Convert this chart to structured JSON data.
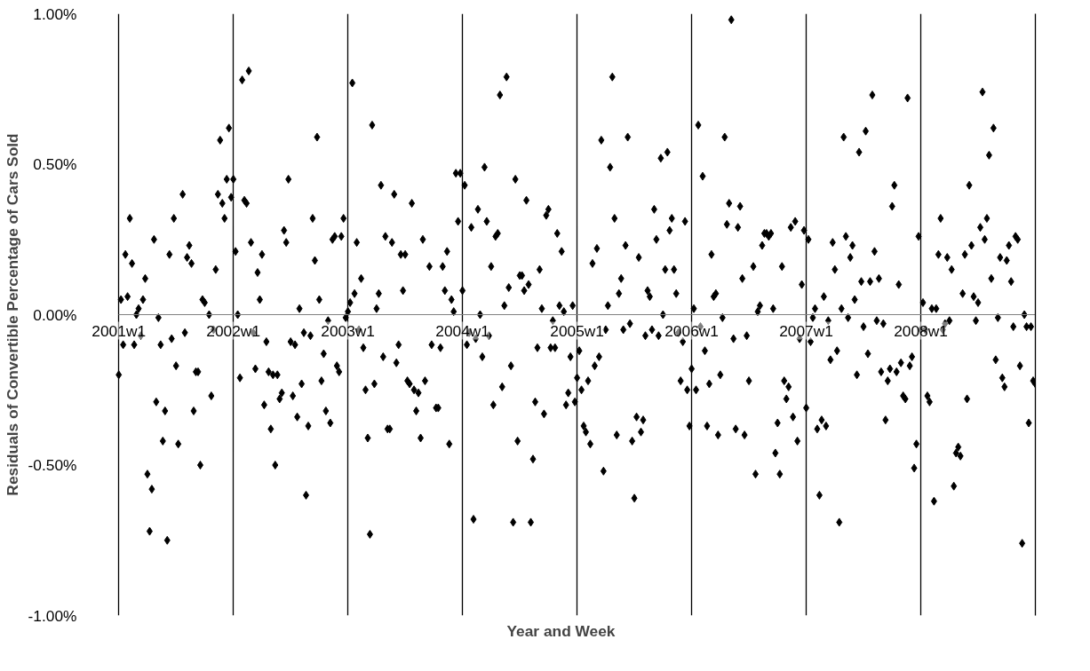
{
  "chart_data": {
    "type": "scatter",
    "xlabel": "Year and Week",
    "ylabel": "Residuals of Convertible Percentage of Cars Sold",
    "marker": "diamond",
    "grid": "x",
    "ylim": [
      -1,
      1
    ],
    "yticks": [
      {
        "value": -1,
        "label": "-1.00%"
      },
      {
        "value": -0.5,
        "label": "-0.50%"
      },
      {
        "value": 0,
        "label": "0.00%"
      },
      {
        "value": 0.5,
        "label": "0.50%"
      },
      {
        "value": 1,
        "label": "1.00%"
      }
    ],
    "categories": [
      "2001w1",
      null,
      null,
      null,
      null,
      null,
      null,
      null,
      null,
      null,
      null,
      null,
      null,
      null,
      null,
      null,
      null,
      null,
      null,
      null,
      null,
      null,
      null,
      null,
      null,
      null,
      null,
      null,
      null,
      null,
      null,
      null,
      null,
      null,
      null,
      null,
      null,
      null,
      null,
      null,
      null,
      null,
      null,
      null,
      null,
      null,
      null,
      null,
      null,
      null,
      null,
      null,
      "2002w1",
      null,
      null,
      null,
      null,
      null,
      null,
      null,
      null,
      null,
      null,
      null,
      null,
      null,
      null,
      null,
      null,
      null,
      null,
      null,
      null,
      null,
      null,
      null,
      null,
      null,
      null,
      null,
      null,
      null,
      null,
      null,
      null,
      null,
      null,
      null,
      null,
      null,
      null,
      null,
      null,
      null,
      null,
      null,
      null,
      null,
      null,
      null,
      null,
      null,
      null,
      null,
      "2003w1",
      null,
      null,
      null,
      null,
      null,
      null,
      null,
      null,
      null,
      null,
      null,
      null,
      null,
      null,
      null,
      null,
      null,
      null,
      null,
      null,
      null,
      null,
      null,
      null,
      null,
      null,
      null,
      null,
      null,
      null,
      null,
      null,
      null,
      null,
      null,
      null,
      null,
      null,
      null,
      null,
      null,
      null,
      null,
      null,
      null,
      null,
      null,
      null,
      null,
      null,
      null,
      "2004w1",
      null,
      null,
      null,
      null,
      null,
      null,
      null,
      null,
      null,
      null,
      null,
      null,
      null,
      null,
      null,
      null,
      null,
      null,
      null,
      null,
      null,
      null,
      null,
      null,
      null,
      null,
      null,
      null,
      null,
      null,
      null,
      null,
      null,
      null,
      null,
      null,
      null,
      null,
      null,
      null,
      null,
      null,
      null,
      null,
      null,
      null,
      null,
      null,
      null,
      null,
      null,
      "2005w1",
      null,
      null,
      null,
      null,
      null,
      null,
      null,
      null,
      null,
      null,
      null,
      null,
      null,
      null,
      null,
      null,
      null,
      null,
      null,
      null,
      null,
      null,
      null,
      null,
      null,
      null,
      null,
      null,
      null,
      null,
      null,
      null,
      null,
      null,
      null,
      null,
      null,
      null,
      null,
      null,
      null,
      null,
      null,
      null,
      null,
      null,
      null,
      null,
      null,
      null,
      null,
      "2006w1",
      null,
      null,
      null,
      null,
      null,
      null,
      null,
      null,
      null,
      null,
      null,
      null,
      null,
      null,
      null,
      null,
      null,
      null,
      null,
      null,
      null,
      null,
      null,
      null,
      null,
      null,
      null,
      null,
      null,
      null,
      null,
      null,
      null,
      null,
      null,
      null,
      null,
      null,
      null,
      null,
      null,
      null,
      null,
      null,
      null,
      null,
      null,
      null,
      null,
      null,
      null,
      "2007w1",
      null,
      null,
      null,
      null,
      null,
      null,
      null,
      null,
      null,
      null,
      null,
      null,
      null,
      null,
      null,
      null,
      null,
      null,
      null,
      null,
      null,
      null,
      null,
      null,
      null,
      null,
      null,
      null,
      null,
      null,
      null,
      null,
      null,
      null,
      null,
      null,
      null,
      null,
      null,
      null,
      null,
      null,
      null,
      null,
      null,
      null,
      null,
      null,
      null,
      null,
      null,
      "2008w1",
      null,
      null,
      null,
      null,
      null,
      null,
      null,
      null,
      null,
      null,
      null,
      null,
      null,
      null,
      null,
      null,
      null,
      null,
      null,
      null,
      null,
      null,
      null,
      null,
      null,
      null,
      null,
      null,
      null,
      null,
      null,
      null,
      null,
      null,
      null,
      null,
      null,
      null,
      null,
      null,
      null,
      null,
      null,
      null,
      null,
      null,
      null,
      null,
      null,
      null,
      null,
      null
    ],
    "series": [
      {
        "color": "#000000",
        "values": [
          -0.2,
          0.05,
          -0.1,
          0.2,
          0.06,
          0.32,
          0.17,
          -0.1,
          0.0,
          0.02,
          -0.07,
          0.05,
          0.12,
          -0.53,
          -0.72,
          -0.58,
          0.25,
          -0.29,
          -0.01,
          -0.1,
          -0.42,
          -0.32,
          -0.75,
          0.2,
          -0.08,
          0.32,
          -0.17,
          -0.43,
          null,
          0.4,
          -0.06,
          0.19,
          0.23,
          0.17,
          -0.32,
          -0.19,
          -0.19,
          -0.5,
          0.05,
          0.04,
          null,
          0.0,
          -0.27,
          -0.05,
          0.15,
          0.4,
          0.58,
          0.37,
          0.32,
          0.45,
          0.62,
          0.39,
          0.45,
          0.21,
          0.0,
          -0.21,
          0.78,
          0.38,
          0.37,
          0.81,
          0.24,
          -0.06,
          -0.18,
          0.14,
          0.05,
          0.2,
          -0.3,
          -0.09,
          -0.19,
          -0.38,
          -0.2,
          -0.5,
          -0.2,
          -0.28,
          -0.26,
          0.28,
          0.24,
          0.45,
          -0.09,
          -0.27,
          -0.1,
          -0.34,
          0.02,
          -0.23,
          -0.06,
          -0.6,
          -0.37,
          -0.07,
          0.32,
          0.18,
          0.59,
          0.05,
          -0.22,
          -0.13,
          -0.32,
          -0.02,
          -0.36,
          0.25,
          0.26,
          -0.17,
          -0.19,
          0.26,
          0.32,
          -0.01,
          0.01,
          0.04,
          0.77,
          0.07,
          0.24,
          -0.05,
          0.12,
          -0.11,
          -0.25,
          -0.41,
          -0.73,
          0.63,
          -0.23,
          0.02,
          0.07,
          0.43,
          -0.14,
          0.26,
          -0.38,
          -0.38,
          0.24,
          0.4,
          -0.16,
          -0.1,
          0.2,
          0.08,
          0.2,
          -0.22,
          -0.23,
          0.37,
          -0.25,
          -0.32,
          -0.26,
          -0.41,
          0.25,
          -0.22,
          null,
          0.16,
          -0.1,
          null,
          -0.31,
          -0.31,
          -0.11,
          0.16,
          0.08,
          0.21,
          -0.43,
          0.05,
          0.01,
          0.47,
          0.31,
          0.47,
          0.08,
          0.43,
          -0.1,
          -0.06,
          0.29,
          -0.68,
          -0.08,
          0.35,
          0.0,
          -0.14,
          0.49,
          0.31,
          -0.07,
          0.16,
          -0.3,
          0.26,
          0.27,
          0.73,
          -0.24,
          0.03,
          0.79,
          0.09,
          -0.17,
          -0.69,
          0.45,
          -0.42,
          0.13,
          0.13,
          0.08,
          0.38,
          0.1,
          -0.69,
          -0.48,
          -0.29,
          -0.11,
          0.15,
          0.02,
          -0.33,
          0.33,
          0.35,
          -0.11,
          -0.02,
          -0.11,
          0.27,
          0.03,
          0.21,
          0.01,
          -0.3,
          -0.26,
          -0.14,
          0.03,
          -0.29,
          -0.21,
          -0.12,
          -0.25,
          -0.37,
          -0.39,
          -0.22,
          -0.43,
          0.17,
          -0.17,
          0.22,
          -0.14,
          0.58,
          -0.52,
          -0.05,
          0.03,
          0.49,
          0.79,
          0.32,
          -0.4,
          0.07,
          0.12,
          -0.05,
          0.23,
          0.59,
          -0.03,
          -0.42,
          -0.61,
          -0.34,
          0.19,
          -0.39,
          -0.35,
          -0.07,
          0.08,
          0.06,
          -0.05,
          0.35,
          0.25,
          -0.07,
          0.52,
          0.0,
          0.15,
          0.54,
          0.28,
          0.32,
          0.15,
          0.07,
          -0.06,
          -0.22,
          -0.09,
          0.31,
          -0.25,
          -0.37,
          -0.18,
          0.02,
          -0.25,
          0.63,
          -0.04,
          0.46,
          -0.12,
          -0.37,
          -0.23,
          0.2,
          0.06,
          0.07,
          -0.4,
          -0.2,
          -0.01,
          0.59,
          0.3,
          0.37,
          0.98,
          -0.08,
          -0.38,
          0.29,
          0.36,
          0.12,
          -0.4,
          -0.07,
          -0.22,
          null,
          0.16,
          -0.53,
          0.01,
          0.03,
          0.23,
          0.27,
          0.27,
          0.26,
          0.27,
          0.02,
          -0.46,
          -0.36,
          -0.53,
          0.16,
          -0.22,
          -0.28,
          -0.24,
          0.29,
          -0.34,
          0.31,
          -0.42,
          -0.08,
          0.1,
          0.28,
          -0.31,
          0.25,
          -0.09,
          -0.01,
          0.02,
          -0.38,
          -0.6,
          -0.35,
          0.06,
          -0.37,
          -0.02,
          -0.15,
          0.24,
          0.15,
          -0.12,
          -0.69,
          0.02,
          0.59,
          0.26,
          -0.01,
          0.19,
          0.23,
          0.05,
          -0.2,
          0.54,
          0.11,
          -0.04,
          0.61,
          -0.13,
          0.11,
          0.73,
          0.21,
          -0.02,
          0.12,
          -0.19,
          -0.03,
          -0.35,
          -0.22,
          -0.18,
          0.36,
          0.43,
          -0.19,
          0.1,
          -0.16,
          -0.27,
          -0.28,
          0.72,
          -0.17,
          -0.14,
          -0.51,
          -0.43,
          0.26,
          -0.05,
          0.04,
          -0.05,
          -0.27,
          -0.29,
          0.02,
          -0.62,
          0.02,
          0.2,
          0.32,
          -0.05,
          -0.03,
          0.19,
          -0.02,
          0.15,
          -0.57,
          -0.46,
          -0.44,
          -0.47,
          0.07,
          0.2,
          -0.28,
          0.43,
          0.23,
          0.06,
          -0.02,
          0.04,
          0.29,
          0.74,
          0.25,
          0.32,
          0.53,
          0.12,
          0.62,
          -0.15,
          -0.01,
          0.19,
          -0.21,
          -0.24,
          0.18,
          0.23,
          0.11,
          -0.04,
          0.26,
          0.25,
          -0.17,
          -0.76,
          0.0,
          -0.04,
          -0.36,
          -0.04,
          -0.22,
          -0.23
        ]
      }
    ]
  }
}
